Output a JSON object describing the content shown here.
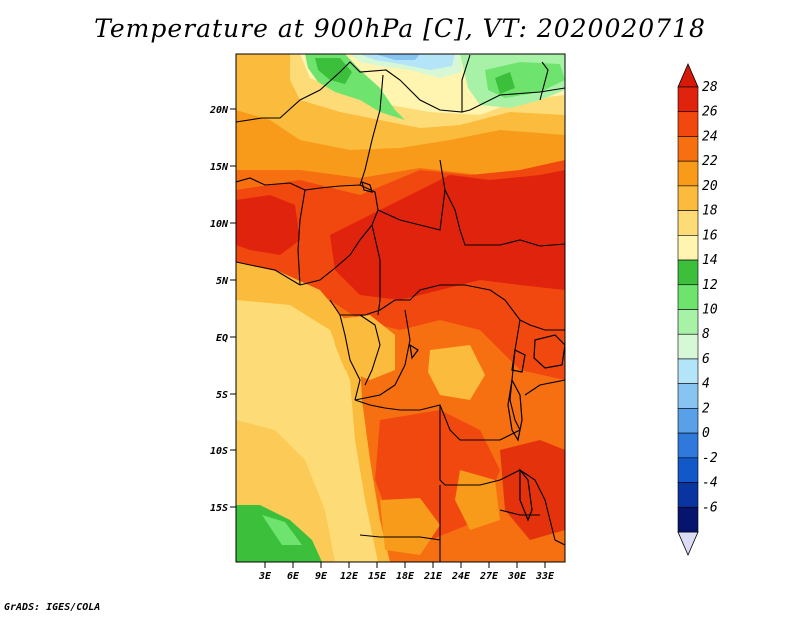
{
  "title": "Temperature at 900hPa [C], VT: 2020020718",
  "credit": "GrADS: IGES/COLA",
  "lat_labels": [
    "20N",
    "15N",
    "10N",
    "5N",
    "EQ",
    "5S",
    "10S",
    "15S"
  ],
  "lon_labels": [
    "3E",
    "6E",
    "9E",
    "12E",
    "15E",
    "18E",
    "21E",
    "24E",
    "27E",
    "30E",
    "33E"
  ],
  "colorbar": {
    "labels": [
      "28",
      "26",
      "24",
      "22",
      "20",
      "18",
      "16",
      "14",
      "12",
      "10",
      "8",
      "6",
      "4",
      "2",
      "0",
      "-2",
      "-4",
      "-6"
    ],
    "colors": [
      "#e0230c",
      "#f0480f",
      "#f66f10",
      "#f89a1a",
      "#fbbb3c",
      "#fddc78",
      "#fff4b0",
      "#3cc03c",
      "#6ee46e",
      "#a8f2a8",
      "#d6f8d6",
      "#b4e4f8",
      "#88c4f0",
      "#5aa0e8",
      "#2f78dc",
      "#1258c8",
      "#0a34a0",
      "#06146e"
    ],
    "over_color": "#d7190a",
    "under_color": "#dcdcf4"
  }
}
